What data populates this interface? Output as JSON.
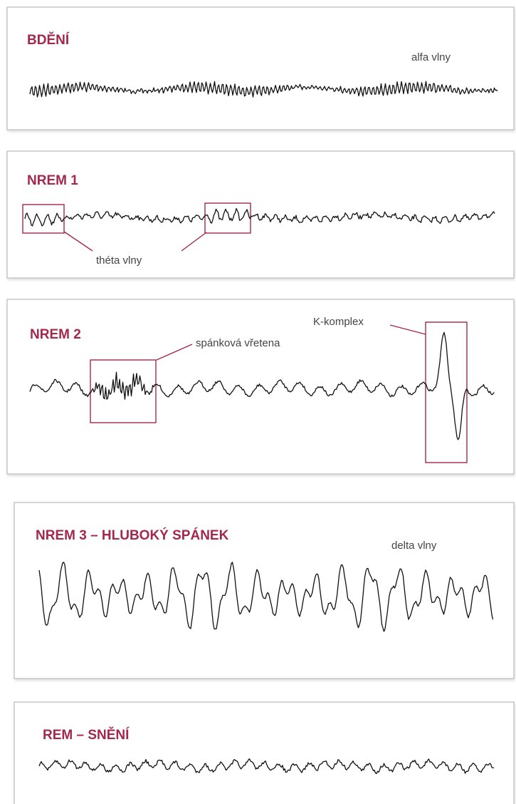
{
  "panels": [
    {
      "title": "BDĚNÍ",
      "annotations": [
        "alfa vlny"
      ]
    },
    {
      "title": "NREM 1",
      "annotations": [
        "théta vlny"
      ]
    },
    {
      "title": "NREM 2",
      "annotations": [
        "spánková vřetena",
        "K-komplex"
      ]
    },
    {
      "title": "NREM 3 – HLUBOKÝ SPÁNEK",
      "annotations": [
        "delta vlny"
      ]
    },
    {
      "title": "REM – SNĚNÍ",
      "annotations": []
    }
  ]
}
